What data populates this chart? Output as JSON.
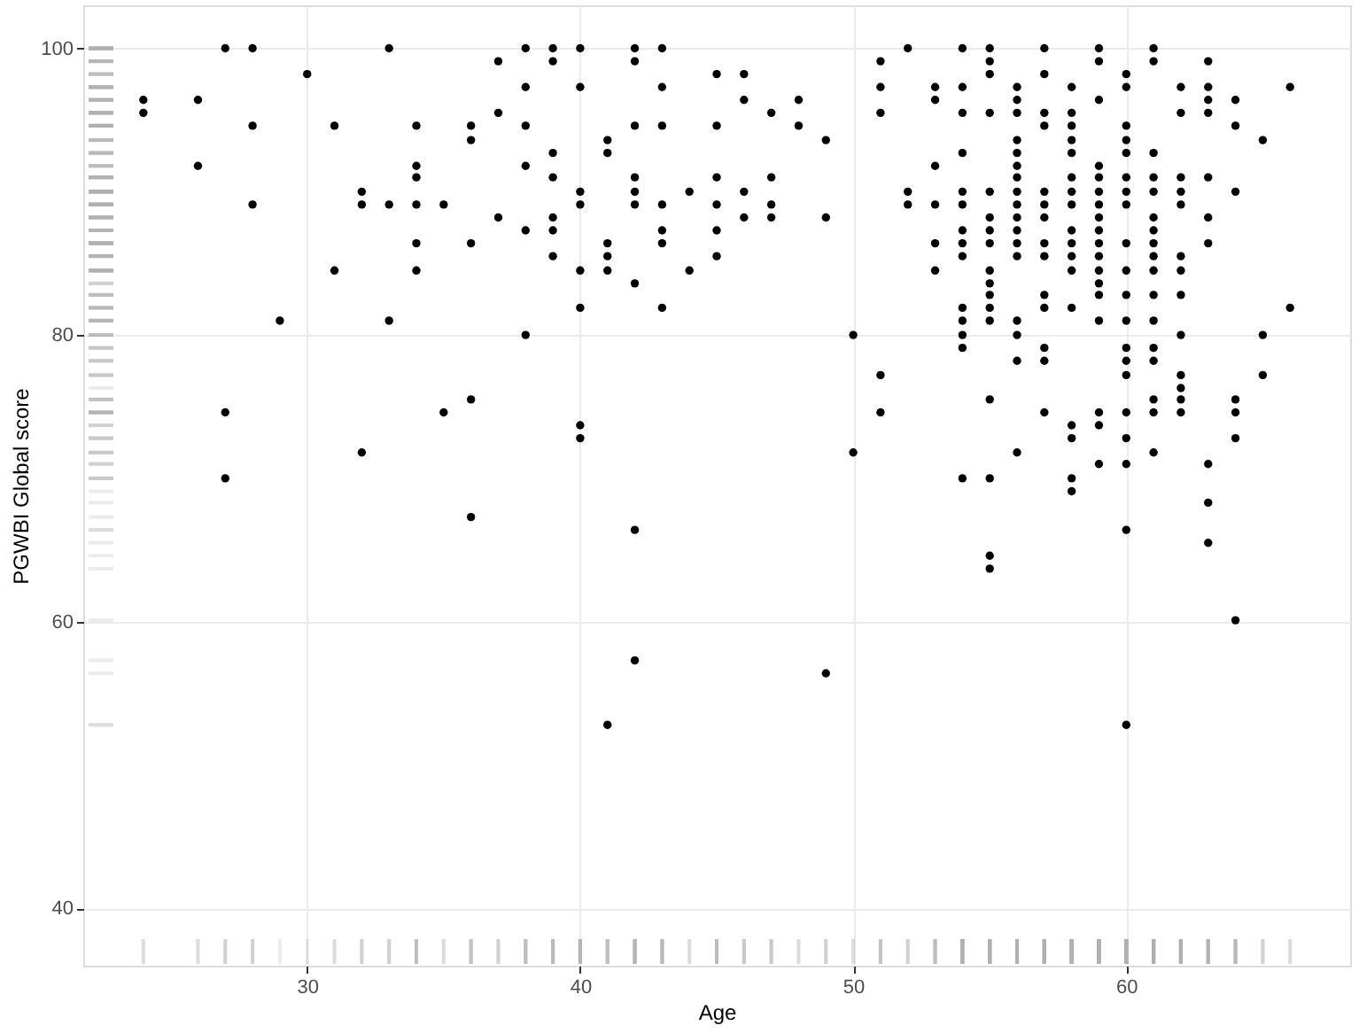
{
  "chart_data": {
    "type": "scatter",
    "xlabel": "Age",
    "ylabel": "PGWBI Global score",
    "xlim": [
      21.8,
      68.2
    ],
    "ylim": [
      36,
      103
    ],
    "xticks": [
      30,
      40,
      50,
      60
    ],
    "yticks": [
      40,
      60,
      80,
      100
    ],
    "grid": true,
    "marker": "circle",
    "series": [
      {
        "color": "#000000",
        "x": [
          24,
          24,
          26,
          26,
          27,
          27,
          27,
          28,
          28,
          28,
          29,
          30,
          31,
          31,
          32,
          32,
          32,
          33,
          33,
          33,
          34,
          34,
          34,
          34,
          34,
          34,
          35,
          35,
          36,
          36,
          36,
          36,
          36,
          37,
          37,
          37,
          38,
          38,
          38,
          38,
          38,
          38,
          39,
          39,
          39,
          39,
          39,
          39,
          39,
          40,
          40,
          40,
          40,
          40,
          40,
          40,
          40,
          41,
          41,
          41,
          41,
          41,
          41,
          42,
          42,
          42,
          42,
          42,
          42,
          42,
          42,
          42,
          43,
          43,
          43,
          43,
          43,
          43,
          43,
          44,
          44,
          45,
          45,
          45,
          45,
          45,
          45,
          46,
          46,
          46,
          46,
          47,
          47,
          47,
          47,
          48,
          48,
          49,
          49,
          49,
          50,
          50,
          51,
          51,
          51,
          51,
          51,
          52,
          52,
          52,
          53,
          53,
          53,
          53,
          53,
          53,
          54,
          54,
          54,
          54,
          54,
          54,
          54,
          54,
          54,
          54,
          54,
          54,
          54,
          54,
          55,
          55,
          55,
          55,
          55,
          55,
          55,
          55,
          55,
          55,
          55,
          55,
          55,
          55,
          55,
          55,
          55,
          56,
          56,
          56,
          56,
          56,
          56,
          56,
          56,
          56,
          56,
          56,
          56,
          56,
          56,
          56,
          56,
          56,
          57,
          57,
          57,
          57,
          57,
          57,
          57,
          57,
          57,
          57,
          57,
          57,
          57,
          57,
          58,
          58,
          58,
          58,
          58,
          58,
          58,
          58,
          58,
          58,
          58,
          58,
          58,
          58,
          58,
          58,
          58,
          59,
          59,
          59,
          59,
          59,
          59,
          59,
          59,
          59,
          59,
          59,
          59,
          59,
          59,
          59,
          59,
          59,
          59,
          60,
          60,
          60,
          60,
          60,
          60,
          60,
          60,
          60,
          60,
          60,
          60,
          60,
          60,
          60,
          60,
          60,
          60,
          60,
          60,
          61,
          61,
          61,
          61,
          61,
          61,
          61,
          61,
          61,
          61,
          61,
          61,
          61,
          61,
          61,
          61,
          61,
          62,
          62,
          62,
          62,
          62,
          62,
          62,
          62,
          62,
          62,
          62,
          62,
          62,
          63,
          63,
          63,
          63,
          63,
          63,
          63,
          63,
          63,
          63,
          64,
          64,
          64,
          64,
          64,
          64,
          64,
          65,
          65,
          65,
          66,
          66
        ],
        "values": [
          96.4,
          95.5,
          96.4,
          91.8,
          100,
          74.6,
          70,
          100,
          94.6,
          89.1,
          81,
          98.2,
          94.6,
          84.5,
          90,
          89.1,
          71.8,
          100,
          89.1,
          81,
          94.6,
          91.8,
          91,
          89.1,
          86.4,
          84.5,
          89.1,
          74.6,
          94.6,
          93.6,
          86.4,
          75.5,
          67.3,
          99.1,
          95.5,
          88.2,
          100,
          97.3,
          94.6,
          91.8,
          87.3,
          80,
          100,
          99.1,
          92.7,
          91,
          88.2,
          87.3,
          85.5,
          100,
          97.3,
          90,
          89.1,
          84.5,
          81.9,
          73.7,
          72.8,
          93.6,
          92.7,
          86.4,
          85.5,
          84.5,
          52.8,
          100,
          99.1,
          94.6,
          91,
          90,
          89.1,
          83.6,
          66.4,
          57.3,
          100,
          97.3,
          94.6,
          89.1,
          87.3,
          86.4,
          81.9,
          90,
          84.5,
          98.2,
          94.6,
          91,
          89.1,
          87.3,
          85.5,
          98.2,
          96.4,
          90,
          88.2,
          95.5,
          91,
          89.1,
          88.2,
          96.4,
          94.6,
          93.6,
          88.2,
          56.4,
          80,
          71.8,
          99.1,
          97.3,
          95.5,
          77.2,
          74.6,
          100,
          90,
          89.1,
          97.3,
          96.4,
          91.8,
          89.1,
          86.4,
          84.5,
          100,
          97.3,
          95.5,
          92.7,
          90,
          89.1,
          87.3,
          86.4,
          85.5,
          81.9,
          81,
          80,
          79.1,
          70,
          100,
          99.1,
          98.2,
          95.5,
          90,
          88.2,
          87.3,
          86.4,
          84.5,
          83.6,
          82.8,
          81.9,
          81,
          75.5,
          70,
          64.6,
          63.7,
          97.3,
          96.4,
          95.5,
          93.6,
          92.7,
          91.8,
          91,
          90,
          89.1,
          88.2,
          87.3,
          86.4,
          85.5,
          81,
          80,
          78.2,
          71.8,
          100,
          98.2,
          95.5,
          94.6,
          90,
          89.1,
          88.2,
          86.4,
          85.5,
          82.8,
          81.9,
          79.1,
          78.2,
          74.6,
          97.3,
          95.5,
          94.6,
          93.6,
          92.7,
          91,
          90,
          89.1,
          87.3,
          86.4,
          85.5,
          84.5,
          81.9,
          73.7,
          72.8,
          70,
          69.1,
          100,
          99.1,
          96.4,
          91.8,
          91,
          90,
          89.1,
          88.2,
          87.3,
          86.4,
          85.5,
          84.5,
          83.6,
          82.8,
          81,
          74.6,
          73.7,
          71,
          98.2,
          97.3,
          94.6,
          93.6,
          92.7,
          91,
          90,
          89.1,
          86.4,
          84.5,
          82.8,
          81,
          79.1,
          78.2,
          77.2,
          74.6,
          72.8,
          71,
          66.4,
          52.8,
          100,
          99.1,
          92.7,
          91,
          90,
          88.2,
          87.3,
          86.4,
          85.5,
          84.5,
          82.8,
          81,
          79.1,
          78.2,
          75.5,
          74.6,
          71.8,
          97.3,
          95.5,
          91,
          90,
          89.1,
          85.5,
          84.5,
          82.8,
          80,
          77.2,
          76.3,
          75.5,
          74.6,
          99.1,
          97.3,
          96.4,
          95.5,
          91,
          88.2,
          86.4,
          71,
          68.3,
          65.5,
          96.4,
          94.6,
          90,
          75.5,
          74.6,
          72.8,
          60.1,
          93.6,
          80,
          77.2,
          97.3,
          81.9
        ]
      }
    ]
  }
}
